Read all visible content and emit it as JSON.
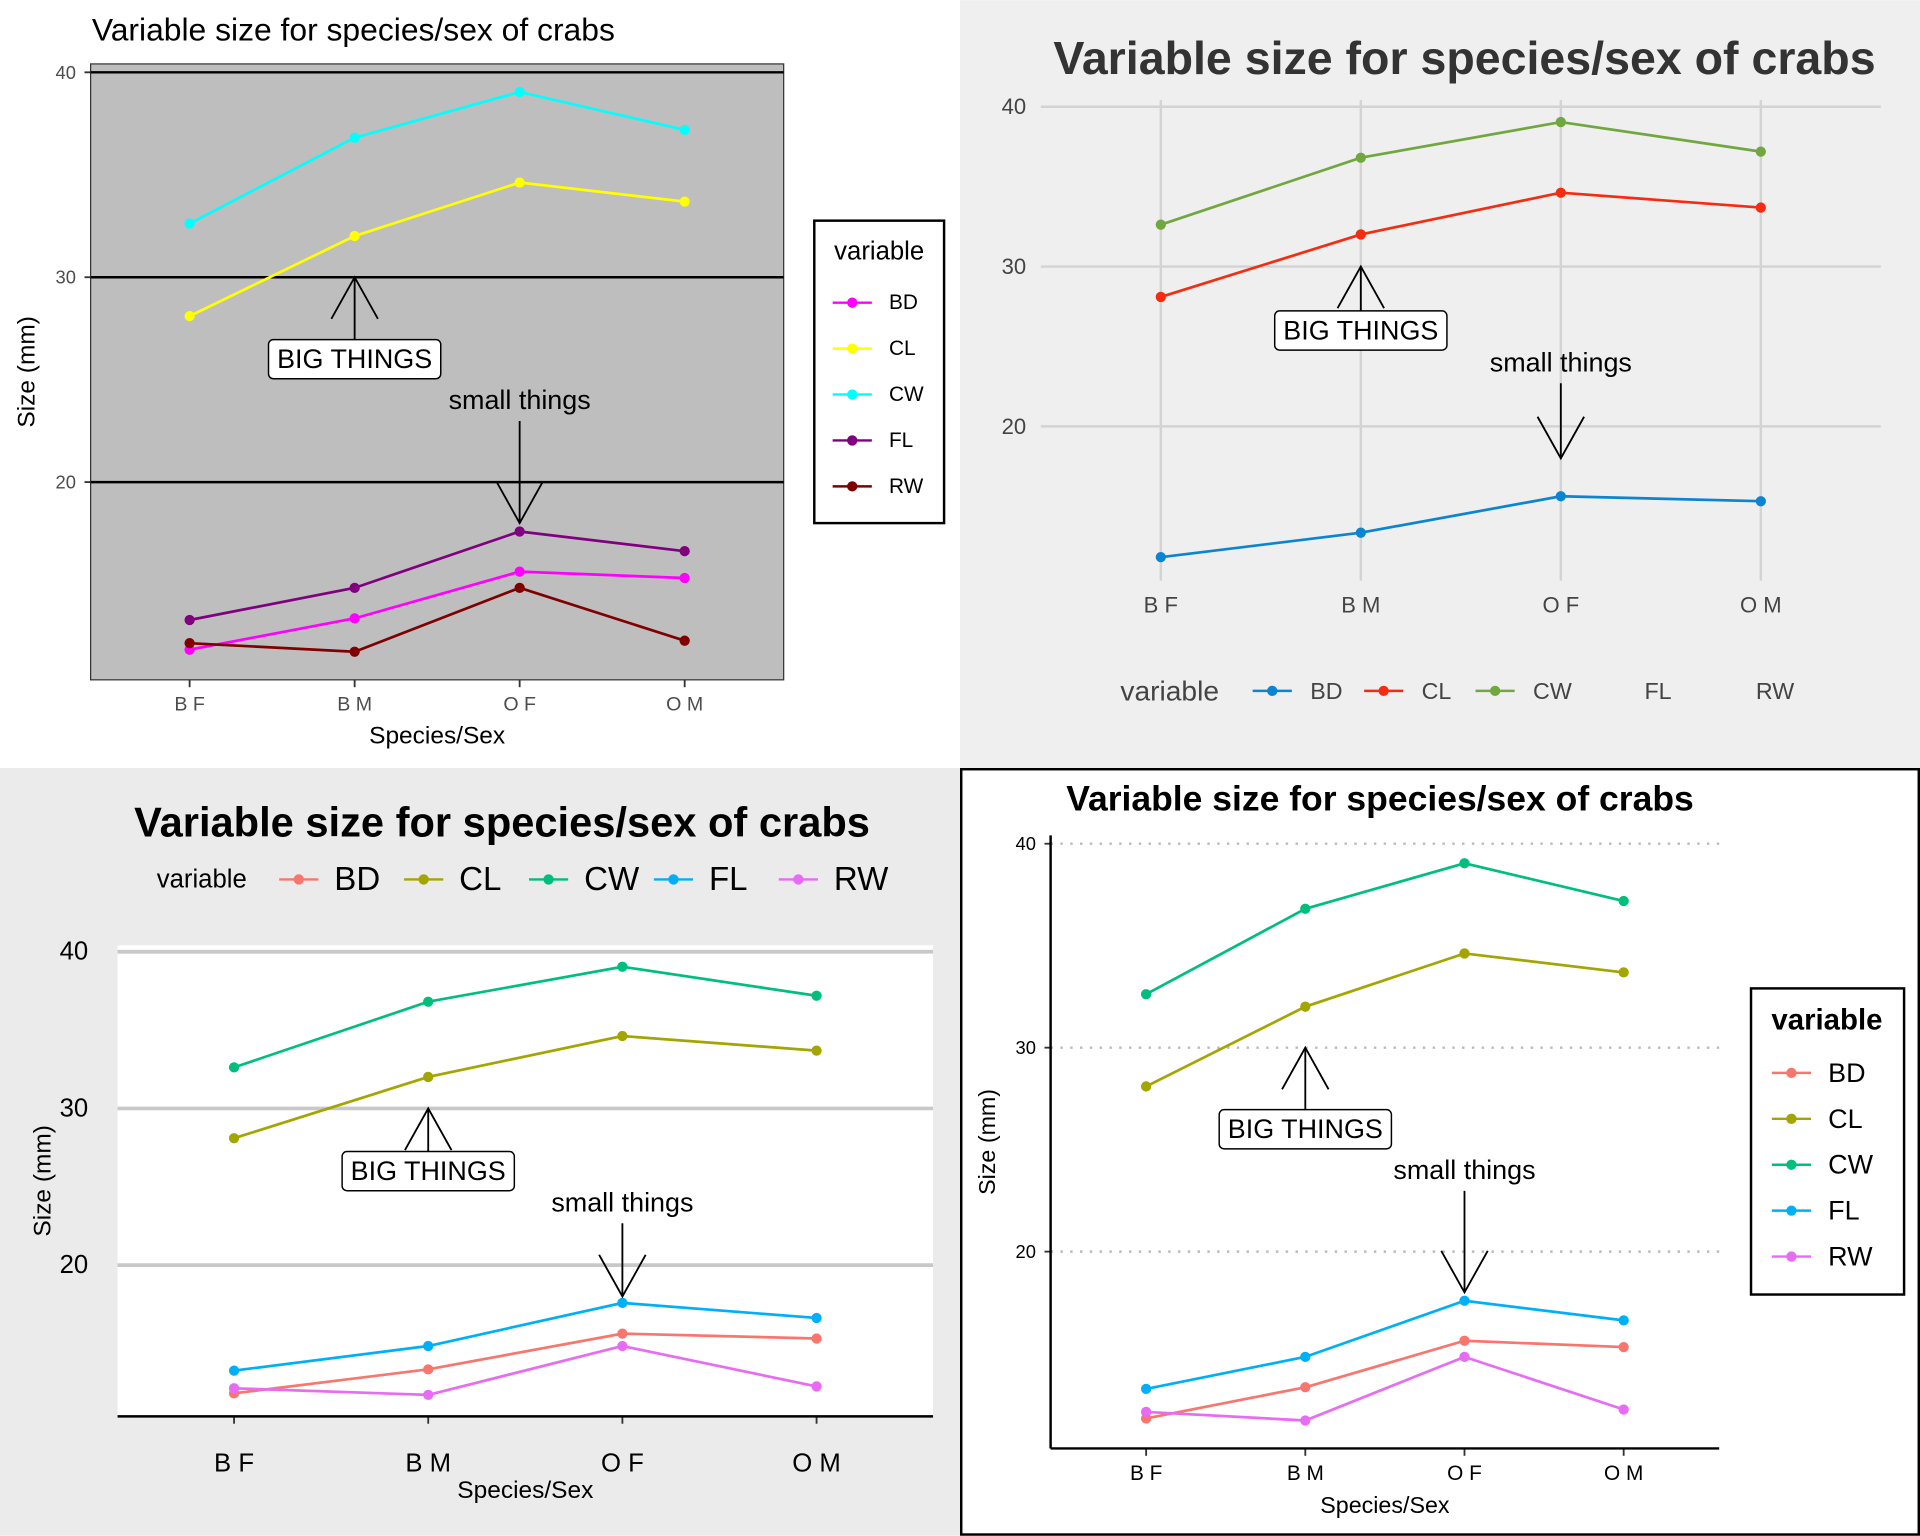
{
  "chart_data": [
    {
      "type": "line",
      "title": "Variable size for species/sex of crabs",
      "xlabel": "Species/Sex",
      "ylabel": "Size (mm)",
      "legend_title": "variable",
      "legend": "right",
      "categories": [
        "B F",
        "B M",
        "O F",
        "O M"
      ],
      "ylim": [
        10.35,
        40.41
      ],
      "yticks": [
        20,
        30,
        40
      ],
      "grid": true,
      "series": [
        {
          "name": "BD",
          "color": "#ff00ff",
          "values": [
            11.82,
            13.35,
            15.63,
            15.32
          ]
        },
        {
          "name": "CL",
          "color": "#ffff00",
          "values": [
            28.1,
            32.01,
            34.62,
            33.69
          ]
        },
        {
          "name": "CW",
          "color": "#00ffff",
          "values": [
            32.62,
            36.81,
            39.04,
            37.19
          ]
        },
        {
          "name": "FL",
          "color": "#800080",
          "values": [
            13.27,
            14.84,
            17.59,
            16.63
          ]
        },
        {
          "name": "RW",
          "color": "#800000",
          "values": [
            12.14,
            11.72,
            14.84,
            12.26
          ]
        }
      ],
      "annotations": [
        {
          "label": "BIG THINGS",
          "x": "B M",
          "y": 26,
          "arrow_to": 30
        },
        {
          "label": "small things",
          "x": "O F",
          "y": 24,
          "arrow_to": 18
        }
      ]
    },
    {
      "type": "line",
      "title": "Variable size for species/sex of crabs",
      "legend_title": "variable",
      "legend": "bottom",
      "categories": [
        "B F",
        "B M",
        "O F",
        "O M"
      ],
      "ylim": [
        10.35,
        40.41
      ],
      "yticks": [
        20,
        30,
        40
      ],
      "grid": true,
      "series": [
        {
          "name": "BD",
          "color": "#0b84d1",
          "values": [
            11.82,
            13.35,
            15.63,
            15.32
          ]
        },
        {
          "name": "CL",
          "color": "#f52c0f",
          "values": [
            28.1,
            32.01,
            34.62,
            33.69
          ]
        },
        {
          "name": "CW",
          "color": "#71a73f",
          "values": [
            32.62,
            36.81,
            39.04,
            37.19
          ]
        },
        {
          "name": "FL"
        },
        {
          "name": "RW"
        }
      ],
      "annotations": [
        {
          "label": "BIG THINGS",
          "x": "B M",
          "y": 26,
          "arrow_to": 30
        },
        {
          "label": "small things",
          "x": "O F",
          "y": 24,
          "arrow_to": 18
        }
      ]
    },
    {
      "type": "line",
      "title": "Variable size for species/sex of crabs",
      "xlabel": "Species/Sex",
      "ylabel": "Size (mm)",
      "legend_title": "variable",
      "legend": "top",
      "categories": [
        "B F",
        "B M",
        "O F",
        "O M"
      ],
      "ylim": [
        10.35,
        40.41
      ],
      "yticks": [
        20,
        30,
        40
      ],
      "grid": true,
      "series": [
        {
          "name": "BD",
          "color": "#F8766D",
          "values": [
            11.82,
            13.35,
            15.63,
            15.32
          ]
        },
        {
          "name": "CL",
          "color": "#A3A500",
          "values": [
            28.1,
            32.01,
            34.62,
            33.69
          ]
        },
        {
          "name": "CW",
          "color": "#00BF7D",
          "values": [
            32.62,
            36.81,
            39.04,
            37.19
          ]
        },
        {
          "name": "FL",
          "color": "#00B0F6",
          "values": [
            13.27,
            14.84,
            17.59,
            16.63
          ]
        },
        {
          "name": "RW",
          "color": "#E76BF3",
          "values": [
            12.14,
            11.72,
            14.84,
            12.26
          ]
        }
      ],
      "annotations": [
        {
          "label": "BIG THINGS",
          "x": "B M",
          "y": 26,
          "arrow_to": 30
        },
        {
          "label": "small things",
          "x": "O F",
          "y": 24,
          "arrow_to": 18
        }
      ]
    },
    {
      "type": "line",
      "title": "Variable size for species/sex of crabs",
      "xlabel": "Species/Sex",
      "ylabel": "Size (mm)",
      "legend_title": "variable",
      "legend": "right",
      "categories": [
        "B F",
        "B M",
        "O F",
        "O M"
      ],
      "ylim": [
        10.35,
        40.41
      ],
      "yticks": [
        20,
        30,
        40
      ],
      "grid": true,
      "series": [
        {
          "name": "BD",
          "color": "#F8766D",
          "values": [
            11.82,
            13.35,
            15.63,
            15.32
          ]
        },
        {
          "name": "CL",
          "color": "#A3A500",
          "values": [
            28.1,
            32.01,
            34.62,
            33.69
          ]
        },
        {
          "name": "CW",
          "color": "#00BF7D",
          "values": [
            32.62,
            36.81,
            39.04,
            37.19
          ]
        },
        {
          "name": "FL",
          "color": "#00B0F6",
          "values": [
            13.27,
            14.84,
            17.59,
            16.63
          ]
        },
        {
          "name": "RW",
          "color": "#E76BF3",
          "values": [
            12.14,
            11.72,
            14.84,
            12.26
          ]
        }
      ],
      "annotations": [
        {
          "label": "BIG THINGS",
          "x": "B M",
          "y": 26,
          "arrow_to": 30
        },
        {
          "label": "small things",
          "x": "O F",
          "y": 24,
          "arrow_to": 18
        }
      ]
    }
  ]
}
